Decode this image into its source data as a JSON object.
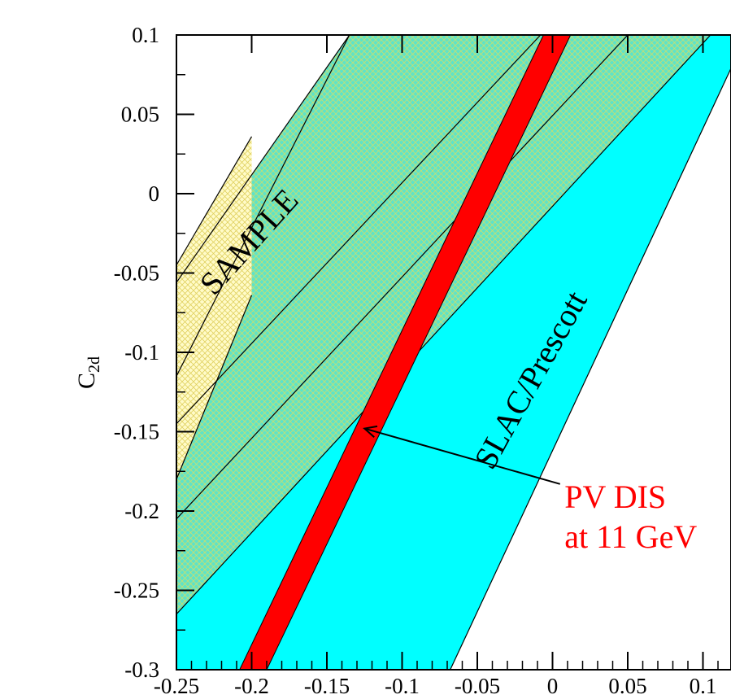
{
  "chart_data": {
    "type": "area",
    "title": "",
    "xlabel": "",
    "ylabel": "C",
    "ylabel_subscript": "2d",
    "xlim": [
      -0.25,
      0.13
    ],
    "ylim": [
      -0.3,
      0.1
    ],
    "x_ticks": [
      "-0.25",
      "-0.2",
      "-0.15",
      "-0.1",
      "-0.05",
      "0",
      "0.05",
      "0.1",
      "0"
    ],
    "y_ticks": [
      "0.1",
      "0.05",
      "0",
      "-0.05",
      "-0.1",
      "-0.15",
      "-0.2",
      "-0.25",
      "-0.3"
    ],
    "grid": false,
    "legend": "none",
    "regions": [
      {
        "name": "SAMPLE",
        "color": "#fffbc8",
        "hatch_color": "#e8d870",
        "polygon": [
          [
            -0.25,
            -0.18
          ],
          [
            -0.25,
            -0.045
          ],
          [
            -0.2,
            0.036
          ],
          [
            -0.2,
            -0.064
          ]
        ]
      },
      {
        "name": "SLAC/Prescott",
        "color": "#00ffff",
        "polygon": [
          [
            -0.25,
            -0.295
          ],
          [
            -0.25,
            -0.115
          ],
          [
            -0.135,
            0.1
          ],
          [
            0.129,
            0.1
          ],
          [
            -0.068,
            -0.3
          ],
          [
            -0.25,
            -0.3
          ]
        ]
      }
    ],
    "hatched_overlap": {
      "color": "#7de0bf",
      "description_lines": [
        [
          [
            -0.25,
            -0.265
          ],
          [
            0.105,
            0.1
          ]
        ],
        [
          [
            -0.25,
            -0.205
          ],
          [
            0.05,
            0.1
          ]
        ],
        [
          [
            -0.25,
            -0.145
          ],
          [
            -0.008,
            0.1
          ]
        ],
        [
          [
            -0.25,
            -0.056
          ],
          [
            -0.135,
            0.1
          ]
        ]
      ]
    },
    "series": [
      {
        "name": "PV DIS at 11 GeV",
        "color": "#ff0000",
        "lower_edge": [
          [
            -0.208,
            -0.3
          ],
          [
            -0.006,
            0.1
          ]
        ],
        "upper_edge": [
          [
            -0.19,
            -0.3
          ],
          [
            0.012,
            0.1
          ]
        ]
      }
    ],
    "annotations": [
      {
        "text": "SAMPLE",
        "color": "#000000",
        "at": [
          -0.225,
          -0.065
        ],
        "rotation_deg": -48
      },
      {
        "text": "SLAC/Prescott",
        "color": "#000000",
        "at": [
          -0.04,
          -0.175
        ],
        "rotation_deg": -61
      },
      {
        "text": "PV DIS",
        "color": "#ff0000",
        "at": [
          0.008,
          -0.198
        ]
      },
      {
        "text": "at 11 GeV",
        "color": "#ff0000",
        "at": [
          0.008,
          -0.223
        ]
      }
    ],
    "arrow": {
      "from": [
        0.005,
        -0.183
      ],
      "to": [
        -0.125,
        -0.148
      ],
      "color": "#000000"
    }
  }
}
